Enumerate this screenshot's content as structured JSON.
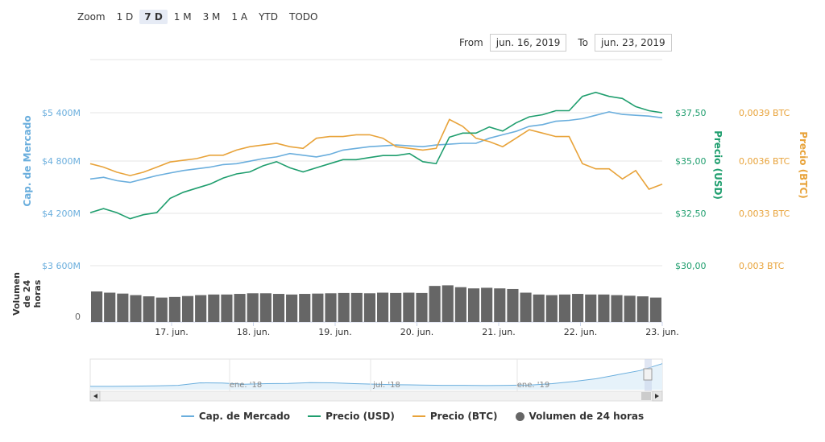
{
  "zoom": {
    "label": "Zoom",
    "buttons": [
      "1 D",
      "7 D",
      "1 M",
      "3 M",
      "1 A",
      "YTD",
      "TODO"
    ],
    "active": "7 D"
  },
  "range": {
    "from_label": "From",
    "from_value": "jun. 16, 2019",
    "to_label": "To",
    "to_value": "jun. 23, 2019"
  },
  "colors": {
    "market_cap": "#6aaedd",
    "price_usd": "#1f9e6e",
    "price_btc": "#e8a33a",
    "volume": "#666666"
  },
  "chart_data": {
    "type": "line",
    "x_ticks": [
      "17. jun.",
      "18. jun.",
      "19. jun.",
      "20. jun.",
      "21. jun.",
      "22. jun.",
      "23. jun."
    ],
    "axes": {
      "market_cap": {
        "label": "Cap. de Mercado",
        "ticks": [
          "$3 600M",
          "$4 200M",
          "$4 800M",
          "$5 400M"
        ],
        "tick_values": [
          3600,
          4200,
          4800,
          5400
        ]
      },
      "price_usd": {
        "label": "Precio (USD)",
        "ticks": [
          "$30,00",
          "$32,50",
          "$35,00",
          "$37,50"
        ],
        "tick_values": [
          30,
          32.5,
          35,
          37.5
        ]
      },
      "price_btc": {
        "label": "Precio (BTC)",
        "ticks": [
          "0,003 BTC",
          "0,0033 BTC",
          "0,0036 BTC",
          "0,0039 BTC"
        ],
        "tick_values": [
          0.003,
          0.0033,
          0.0036,
          0.0039
        ]
      },
      "volume": {
        "label": "Volumen de 24 horas",
        "ticks": [
          "0"
        ]
      }
    },
    "series": [
      {
        "name": "Cap. de Mercado",
        "axis": "market_cap",
        "values": [
          4620,
          4640,
          4600,
          4580,
          4620,
          4660,
          4690,
          4720,
          4740,
          4760,
          4790,
          4800,
          4830,
          4860,
          4880,
          4920,
          4900,
          4880,
          4910,
          4960,
          4980,
          5000,
          5010,
          5020,
          5010,
          5000,
          5020,
          5030,
          5040,
          5040,
          5100,
          5140,
          5180,
          5240,
          5260,
          5300,
          5310,
          5330,
          5370,
          5410,
          5380,
          5370,
          5360,
          5340
        ]
      },
      {
        "name": "Precio (USD)",
        "axis": "price_usd",
        "values": [
          32.6,
          32.8,
          32.6,
          32.3,
          32.5,
          32.6,
          33.3,
          33.6,
          33.8,
          34.0,
          34.3,
          34.5,
          34.6,
          34.9,
          35.1,
          34.8,
          34.6,
          34.8,
          35.0,
          35.2,
          35.2,
          35.3,
          35.4,
          35.4,
          35.5,
          35.1,
          35.0,
          36.3,
          36.5,
          36.5,
          36.8,
          36.6,
          37.0,
          37.3,
          37.4,
          37.6,
          37.6,
          38.3,
          38.5,
          38.3,
          38.2,
          37.8,
          37.6,
          37.5
        ]
      },
      {
        "name": "Precio (BTC)",
        "axis": "price_btc",
        "values": [
          0.0036,
          0.00358,
          0.00355,
          0.00353,
          0.00355,
          0.00358,
          0.00361,
          0.00362,
          0.00363,
          0.00365,
          0.00365,
          0.00368,
          0.0037,
          0.00371,
          0.00372,
          0.0037,
          0.00369,
          0.00375,
          0.00376,
          0.00376,
          0.00377,
          0.00377,
          0.00375,
          0.0037,
          0.00369,
          0.00368,
          0.00369,
          0.00386,
          0.00382,
          0.00375,
          0.00373,
          0.0037,
          0.00375,
          0.0038,
          0.00378,
          0.00376,
          0.00376,
          0.0036,
          0.00357,
          0.00357,
          0.00351,
          0.00356,
          0.00345,
          0.00348
        ]
      },
      {
        "name": "Volumen de 24 horas",
        "axis": "volume",
        "values": [
          1.0,
          0.96,
          0.93,
          0.88,
          0.84,
          0.8,
          0.82,
          0.85,
          0.88,
          0.9,
          0.9,
          0.92,
          0.94,
          0.94,
          0.92,
          0.9,
          0.92,
          0.93,
          0.94,
          0.95,
          0.95,
          0.94,
          0.96,
          0.95,
          0.96,
          0.95,
          1.18,
          1.2,
          1.14,
          1.1,
          1.12,
          1.1,
          1.08,
          0.96,
          0.9,
          0.88,
          0.9,
          0.92,
          0.9,
          0.9,
          0.88,
          0.86,
          0.84,
          0.8
        ]
      }
    ],
    "navigator": {
      "labels": [
        "ene. '18",
        "jul. '18",
        "ene. '19"
      ],
      "values": [
        0.12,
        0.12,
        0.13,
        0.14,
        0.16,
        0.25,
        0.24,
        0.2,
        0.22,
        0.23,
        0.26,
        0.25,
        0.22,
        0.2,
        0.18,
        0.17,
        0.16,
        0.16,
        0.15,
        0.16,
        0.17,
        0.22,
        0.3,
        0.4,
        0.55,
        0.7,
        0.95
      ]
    }
  },
  "legend": [
    "Cap. de Mercado",
    "Precio (USD)",
    "Precio (BTC)",
    "Volumen de 24 horas"
  ]
}
